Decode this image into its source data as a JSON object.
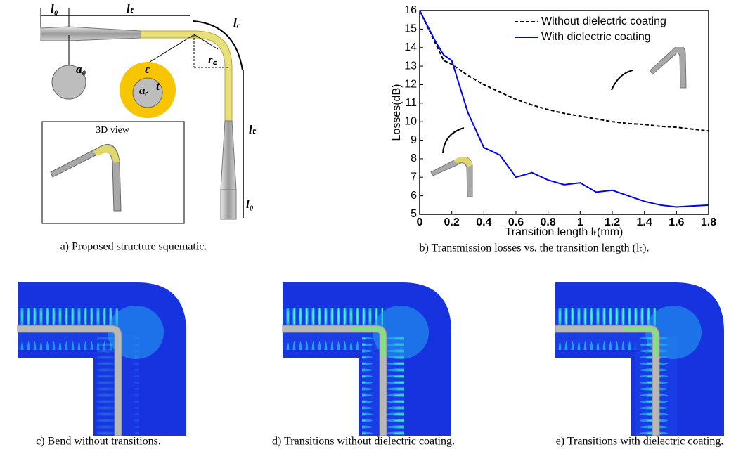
{
  "schematic": {
    "labels": [
      "l₀",
      "lₜ",
      "lᵣ",
      "a₀",
      "ε",
      "aᵣ",
      "t",
      "r꜀",
      "lₜ",
      "l₀"
    ],
    "inset_title": "3D view",
    "caption": "a)  Proposed structure squematic."
  },
  "chart_data": {
    "type": "line",
    "xlabel": "Transition length lₜ(mm)",
    "ylabel": "Losses(dB)",
    "x": [
      0,
      0.1,
      0.15,
      0.2,
      0.3,
      0.4,
      0.5,
      0.6,
      0.7,
      0.8,
      0.9,
      1.0,
      1.1,
      1.2,
      1.3,
      1.4,
      1.5,
      1.6,
      1.7,
      1.8
    ],
    "series": [
      {
        "name": "Without dielectric coating",
        "color": "#000000",
        "dash": true,
        "values": [
          16,
          14.2,
          13.3,
          13.1,
          12.5,
          12.0,
          11.6,
          11.2,
          10.9,
          10.65,
          10.45,
          10.3,
          10.15,
          10.0,
          9.9,
          9.85,
          9.75,
          9.7,
          9.6,
          9.5
        ]
      },
      {
        "name": "With dielectric coating",
        "color": "#0000ff",
        "dash": false,
        "values": [
          16,
          14.3,
          13.6,
          13.3,
          10.5,
          8.6,
          8.2,
          7.0,
          7.25,
          6.85,
          6.6,
          6.7,
          6.2,
          6.3,
          6.0,
          5.7,
          5.5,
          5.4,
          5.45,
          5.5
        ]
      }
    ],
    "xlim": [
      0,
      1.8
    ],
    "xticks": [
      0,
      0.2,
      0.4,
      0.6,
      0.8,
      1,
      1.2,
      1.4,
      1.6,
      1.8
    ],
    "ylim": [
      5,
      16
    ],
    "yticks": [
      5,
      6,
      7,
      8,
      9,
      10,
      11,
      12,
      13,
      14,
      15,
      16
    ],
    "legend": "upper right",
    "caption": "b)  Transmission losses vs. the transition length (lₜ)."
  },
  "fields": [
    {
      "caption": "c)  Bend without transitions."
    },
    {
      "caption": "d)  Transitions without dielectric coating."
    },
    {
      "caption": "e)  Transitions with dielectric coating."
    }
  ]
}
